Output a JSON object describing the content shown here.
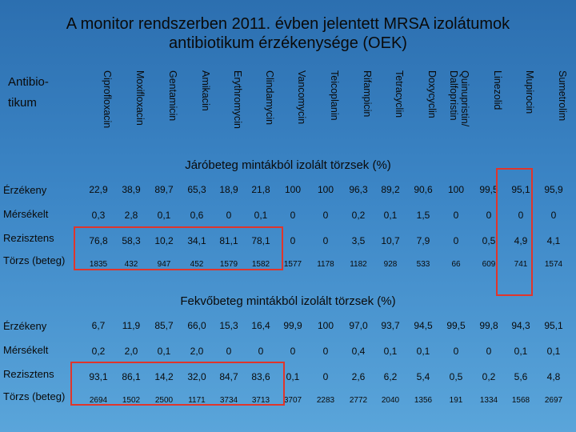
{
  "title": {
    "line1": "A monitor rendszerben 2011. évben jelentett MRSA izolátumok",
    "line2": "antibiotikum érzékenysége (OEK)"
  },
  "header": {
    "corner_label": "Antibio- tikum",
    "antibiotics": [
      "Ciprofloxacin",
      "Moxifloxacin",
      "Gentamicin",
      "Amikacin",
      "Erythromycin",
      "Clindamycin",
      "Vancomycin",
      "Teicoplanin",
      "Rifampicin",
      "Tetracyclin",
      "Doxycyclin",
      "Quinupristin/\nDalfopristin",
      "Linezolid",
      "Mupirocin",
      "Sumetrolim"
    ]
  },
  "sections": [
    {
      "heading": "Járóbeteg mintákból izolált törzsek (%)",
      "rows": [
        {
          "label": "Érzékeny",
          "values": [
            "22,9",
            "38,9",
            "89,7",
            "65,3",
            "18,9",
            "21,8",
            "100",
            "100",
            "96,3",
            "89,2",
            "90,6",
            "100",
            "99,5",
            "95,1",
            "95,9"
          ]
        },
        {
          "label": "Mérsékelt",
          "values": [
            "0,3",
            "2,8",
            "0,1",
            "0,6",
            "0",
            "0,1",
            "0",
            "0",
            "0,2",
            "0,1",
            "1,5",
            "0",
            "0",
            "0",
            "0"
          ]
        },
        {
          "label": "Rezisztens",
          "values": [
            "76,8",
            "58,3",
            "10,2",
            "34,1",
            "81,1",
            "78,1",
            "0",
            "0",
            "3,5",
            "10,7",
            "7,9",
            "0",
            "0,5",
            "4,9",
            "4,1"
          ]
        },
        {
          "label": "Törzs (beteg)",
          "values": [
            "1835",
            "432",
            "947",
            "452",
            "1579",
            "1582",
            "1577",
            "1178",
            "1182",
            "928",
            "533",
            "66",
            "609",
            "741",
            "1574"
          ]
        }
      ]
    },
    {
      "heading": "Fekvőbeteg mintákból izolált törzsek (%)",
      "rows": [
        {
          "label": "Érzékeny",
          "values": [
            "6,7",
            "11,9",
            "85,7",
            "66,0",
            "15,3",
            "16,4",
            "99,9",
            "100",
            "97,0",
            "93,7",
            "94,5",
            "99,5",
            "99,8",
            "94,3",
            "95,1"
          ]
        },
        {
          "label": "Mérsékelt",
          "values": [
            "0,2",
            "2,0",
            "0,1",
            "2,0",
            "0",
            "0",
            "0",
            "0",
            "0,4",
            "0,1",
            "0,1",
            "0",
            "0",
            "0,1",
            "0,1"
          ]
        },
        {
          "label": "Rezisztens",
          "values": [
            "93,1",
            "86,1",
            "14,2",
            "32,0",
            "84,7",
            "83,6",
            "0,1",
            "0",
            "2,6",
            "6,2",
            "5,4",
            "0,5",
            "0,2",
            "5,6",
            "4,8"
          ]
        },
        {
          "label": "Törzs (beteg)",
          "values": [
            "2694",
            "1502",
            "2500",
            "1171",
            "3734",
            "3713",
            "3707",
            "2283",
            "2772",
            "2040",
            "1356",
            "191",
            "1334",
            "1568",
            "2697"
          ]
        }
      ]
    }
  ],
  "highlight_color": "#e0352b"
}
